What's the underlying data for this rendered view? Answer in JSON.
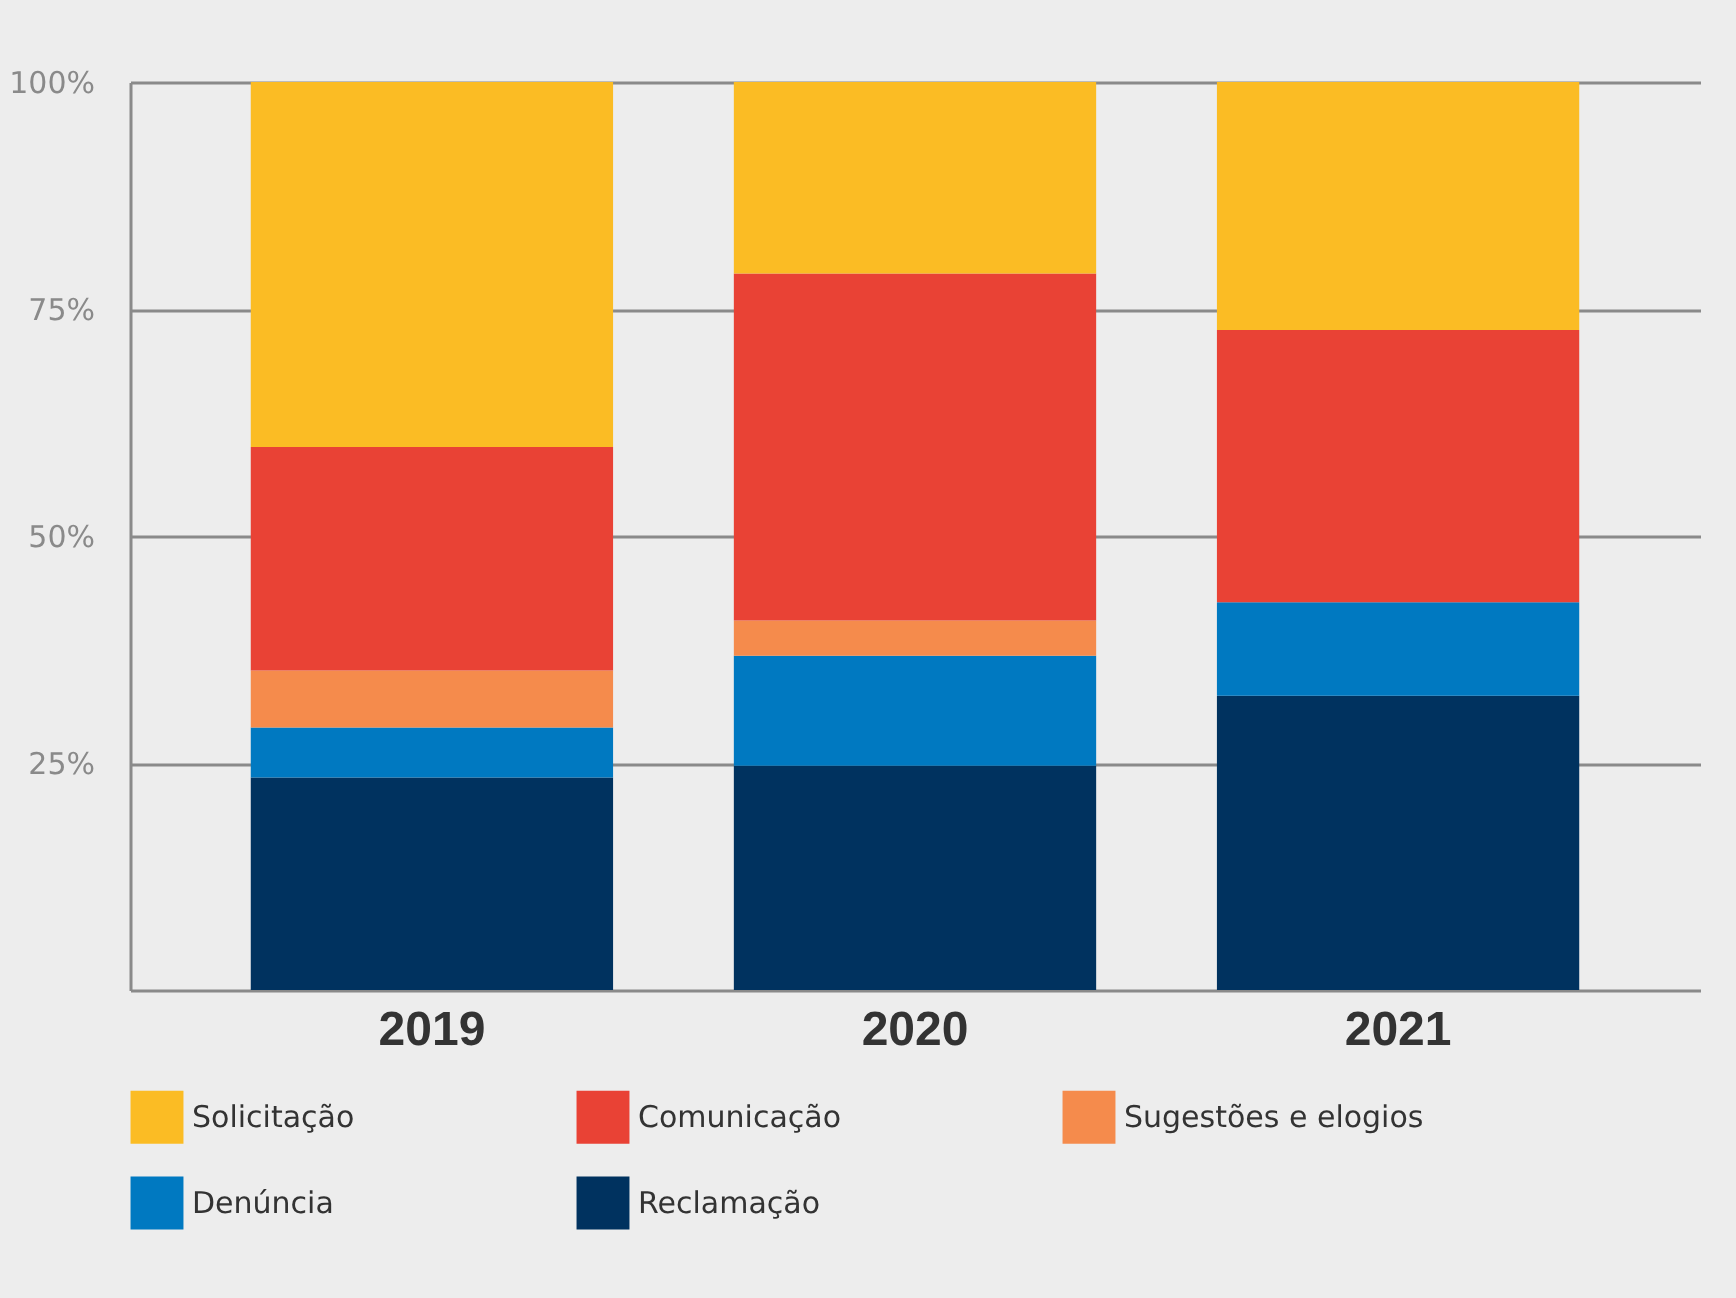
{
  "chart_data": {
    "type": "bar",
    "stacked": true,
    "categories": [
      "2019",
      "2020",
      "2021"
    ],
    "series": [
      {
        "name": "Reclamação",
        "color": "#00325f",
        "values": [
          23.4,
          24.7,
          32.4
        ]
      },
      {
        "name": "Denúncia",
        "color": "#0079c1",
        "values": [
          5.5,
          12.1,
          10.3
        ]
      },
      {
        "name": "Sugestões e elogios",
        "color": "#f58b4c",
        "values": [
          6.3,
          3.9,
          null
        ]
      },
      {
        "name": "Comunicação",
        "color": "#e94235",
        "values": [
          24.6,
          38.2,
          30.0
        ]
      },
      {
        "name": "Solicitação",
        "color": "#fbbc24",
        "values": [
          40.2,
          21.1,
          27.3
        ]
      }
    ],
    "ylim": [
      0,
      100
    ],
    "yticks": [
      {
        "value": 25,
        "label": "25%"
      },
      {
        "value": 50,
        "label": "50%"
      },
      {
        "value": 75,
        "label": "75%"
      },
      {
        "value": 100,
        "label": "100%"
      }
    ],
    "grid": "y",
    "legend": "bottom"
  }
}
